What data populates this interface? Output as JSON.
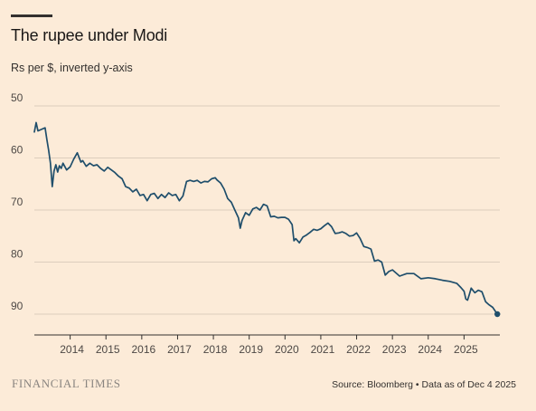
{
  "header": {
    "title": "The rupee under Modi",
    "subtitle": "Rs per $, inverted y-axis"
  },
  "footer": {
    "brand": "FINANCIAL TIMES",
    "source": "Source: Bloomberg • Data as of Dec 4 2025"
  },
  "colors": {
    "background": "#fcebd8",
    "line": "#1f4e6b",
    "grid": "#dccdbd",
    "axis": "#33302e"
  },
  "chart_data": {
    "type": "line",
    "title": "The rupee under Modi",
    "ylabel": "Rs per $, inverted y-axis",
    "y_inverted": true,
    "ylim": [
      50,
      94
    ],
    "xlim": [
      2013.0,
      2026.0
    ],
    "yticks": [
      "50",
      "60",
      "70",
      "80",
      "90"
    ],
    "xticks": [
      "2014",
      "2015",
      "2016",
      "2017",
      "2018",
      "2019",
      "2020",
      "2021",
      "2022",
      "2023",
      "2024",
      "2025"
    ],
    "grid": true,
    "end_marker": true,
    "series": [
      {
        "x": [
          2013.0,
          2013.05,
          2013.1,
          2013.2,
          2013.3,
          2013.35,
          2013.4,
          2013.45,
          2013.5,
          2013.55,
          2013.6,
          2013.65,
          2013.7,
          2013.75,
          2013.8,
          2013.9,
          2014.0,
          2014.1,
          2014.2,
          2014.3,
          2014.35,
          2014.45,
          2014.55,
          2014.65,
          2014.75,
          2014.85,
          2014.95,
          2015.05,
          2015.15,
          2015.25,
          2015.35,
          2015.45,
          2015.55,
          2015.65,
          2015.75,
          2015.85,
          2015.95,
          2016.05,
          2016.15,
          2016.25,
          2016.35,
          2016.45,
          2016.55,
          2016.65,
          2016.75,
          2016.85,
          2016.95,
          2017.05,
          2017.15,
          2017.25,
          2017.35,
          2017.45,
          2017.55,
          2017.65,
          2017.75,
          2017.85,
          2017.95,
          2018.05,
          2018.1,
          2018.2,
          2018.3,
          2018.4,
          2018.5,
          2018.6,
          2018.7,
          2018.75,
          2018.8,
          2018.9,
          2019.0,
          2019.1,
          2019.2,
          2019.3,
          2019.4,
          2019.5,
          2019.6,
          2019.7,
          2019.8,
          2019.9,
          2020.0,
          2020.1,
          2020.2,
          2020.25,
          2020.3,
          2020.4,
          2020.5,
          2020.6,
          2020.7,
          2020.8,
          2020.9,
          2021.0,
          2021.1,
          2021.2,
          2021.3,
          2021.4,
          2021.5,
          2021.6,
          2021.7,
          2021.8,
          2021.9,
          2022.0,
          2022.1,
          2022.2,
          2022.3,
          2022.4,
          2022.5,
          2022.6,
          2022.7,
          2022.8,
          2022.9,
          2023.0,
          2023.2,
          2023.4,
          2023.6,
          2023.8,
          2024.0,
          2024.2,
          2024.4,
          2024.6,
          2024.8,
          2024.9,
          2025.0,
          2025.05,
          2025.1,
          2025.15,
          2025.2,
          2025.3,
          2025.4,
          2025.5,
          2025.6,
          2025.7,
          2025.8,
          2025.93
        ],
        "values": [
          55.0,
          53.2,
          54.8,
          54.5,
          54.2,
          56.5,
          58.5,
          61.0,
          65.5,
          62.5,
          61.3,
          62.7,
          61.5,
          62.0,
          61.0,
          62.3,
          61.7,
          60.2,
          59.0,
          60.8,
          60.5,
          61.6,
          61.0,
          61.5,
          61.3,
          62.0,
          62.5,
          61.8,
          62.3,
          62.8,
          63.5,
          64.0,
          65.5,
          65.8,
          66.5,
          66.0,
          67.2,
          67.0,
          68.2,
          67.0,
          66.8,
          67.8,
          67.0,
          67.6,
          66.7,
          67.2,
          67.0,
          68.2,
          67.3,
          64.5,
          64.3,
          64.5,
          64.3,
          64.8,
          64.5,
          64.6,
          64.0,
          63.8,
          64.2,
          64.8,
          66.0,
          67.8,
          68.5,
          70.0,
          71.5,
          73.5,
          72.0,
          70.5,
          71.0,
          69.8,
          69.5,
          70.0,
          68.9,
          69.2,
          71.3,
          71.2,
          71.5,
          71.4,
          71.4,
          71.8,
          72.8,
          75.9,
          75.5,
          76.3,
          75.2,
          74.8,
          74.3,
          73.7,
          73.9,
          73.6,
          73.0,
          72.5,
          73.2,
          74.5,
          74.4,
          74.2,
          74.5,
          75.0,
          74.9,
          74.4,
          75.5,
          77.0,
          77.2,
          77.5,
          79.8,
          79.6,
          80.0,
          82.5,
          81.8,
          81.5,
          82.7,
          82.2,
          82.2,
          83.2,
          83.0,
          83.2,
          83.5,
          83.7,
          84.1,
          84.8,
          85.6,
          87.1,
          87.3,
          86.2,
          85.0,
          85.9,
          85.4,
          85.7,
          87.6,
          88.2,
          88.7,
          90.0
        ]
      }
    ]
  }
}
